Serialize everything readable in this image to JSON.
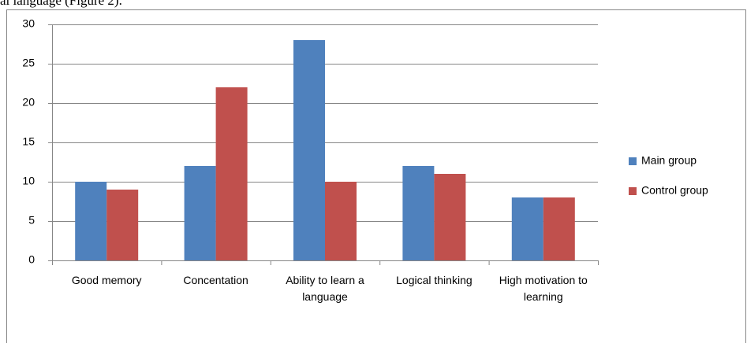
{
  "caption_fragment": "al language (Figure 2).",
  "chart_data": {
    "type": "bar",
    "categories": [
      "Good memory",
      "Concentation",
      "Ability to learn a language",
      "Logical thinking",
      "High motivation to learning"
    ],
    "series": [
      {
        "name": "Main group",
        "color": "#4f81bd",
        "values": [
          10,
          12,
          28,
          12,
          8
        ]
      },
      {
        "name": "Control group",
        "color": "#c0504d",
        "values": [
          9,
          22,
          10,
          11,
          8
        ]
      }
    ],
    "ylim": [
      0,
      30
    ],
    "yticks": [
      0,
      5,
      10,
      15,
      20,
      25,
      30
    ],
    "grid": true,
    "legend": "right"
  }
}
